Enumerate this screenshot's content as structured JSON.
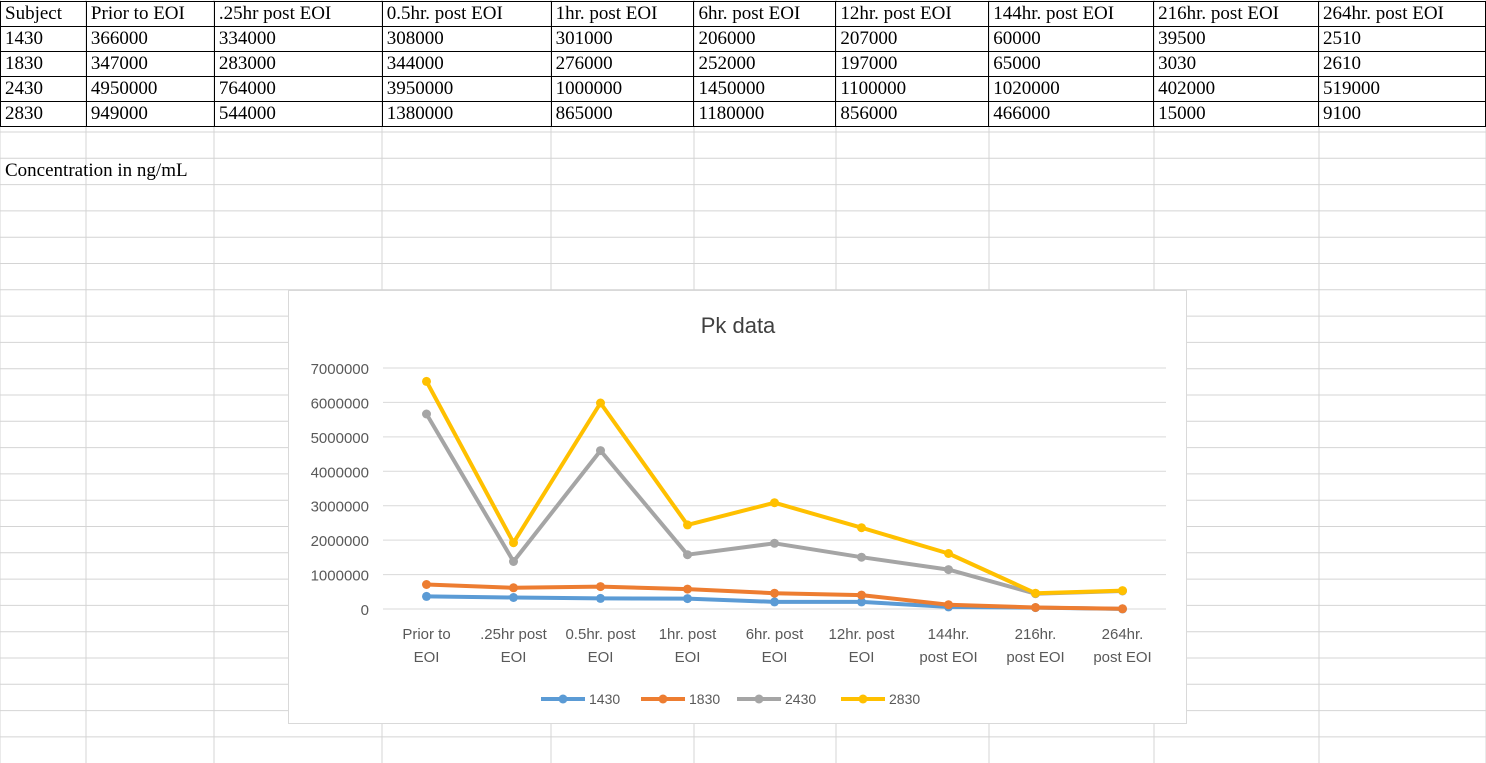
{
  "table": {
    "headers": [
      "Subject",
      "Prior to EOI",
      ".25hr post EOI",
      "0.5hr. post EOI",
      "1hr. post EOI",
      "6hr. post EOI",
      "12hr. post EOI",
      "144hr. post EOI",
      "216hr. post EOI",
      "264hr. post EOI"
    ],
    "rows": [
      [
        "1430",
        "366000",
        "334000",
        "308000",
        "301000",
        "206000",
        "207000",
        "60000",
        "39500",
        "2510"
      ],
      [
        "1830",
        "347000",
        "283000",
        "344000",
        "276000",
        "252000",
        "197000",
        "65000",
        "3030",
        "2610"
      ],
      [
        "2430",
        "4950000",
        "764000",
        "3950000",
        "1000000",
        "1450000",
        "1100000",
        "1020000",
        "402000",
        "519000"
      ],
      [
        "2830",
        "949000",
        "544000",
        "1380000",
        "865000",
        "1180000",
        "856000",
        "466000",
        "15000",
        "9100"
      ]
    ]
  },
  "note": "Concentration in ng/mL",
  "chart_data": {
    "type": "line",
    "stacked": true,
    "title": "Pk data",
    "xlabel": "",
    "ylabel": "",
    "categories": [
      [
        "Prior to",
        "EOI"
      ],
      [
        ".25hr post",
        "EOI"
      ],
      [
        "0.5hr. post",
        "EOI"
      ],
      [
        "1hr. post",
        "EOI"
      ],
      [
        "6hr. post",
        "EOI"
      ],
      [
        "12hr. post",
        "EOI"
      ],
      [
        "144hr.",
        "post EOI"
      ],
      [
        "216hr.",
        "post EOI"
      ],
      [
        "264hr.",
        "post EOI"
      ]
    ],
    "yticks": [
      "0",
      "1000000",
      "2000000",
      "3000000",
      "4000000",
      "5000000",
      "6000000",
      "7000000"
    ],
    "ylim": [
      0,
      7000000
    ],
    "grid": true,
    "legend_position": "bottom",
    "series": [
      {
        "name": "1430",
        "color": "#5B9BD5",
        "values": [
          366000,
          334000,
          308000,
          301000,
          206000,
          207000,
          60000,
          39500,
          2510
        ]
      },
      {
        "name": "1830",
        "color": "#ED7D31",
        "values": [
          347000,
          283000,
          344000,
          276000,
          252000,
          197000,
          65000,
          3030,
          2610
        ]
      },
      {
        "name": "2430",
        "color": "#A5A5A5",
        "values": [
          4950000,
          764000,
          3950000,
          1000000,
          1450000,
          1100000,
          1020000,
          402000,
          519000
        ]
      },
      {
        "name": "2830",
        "color": "#FFC000",
        "values": [
          949000,
          544000,
          1380000,
          865000,
          1180000,
          856000,
          466000,
          15000,
          9100
        ]
      }
    ]
  },
  "colors": {
    "grid_line": "#d9d9d9",
    "sheet_grid": "#d4d4d4",
    "axis_text": "#595959",
    "title_text": "#404040"
  }
}
